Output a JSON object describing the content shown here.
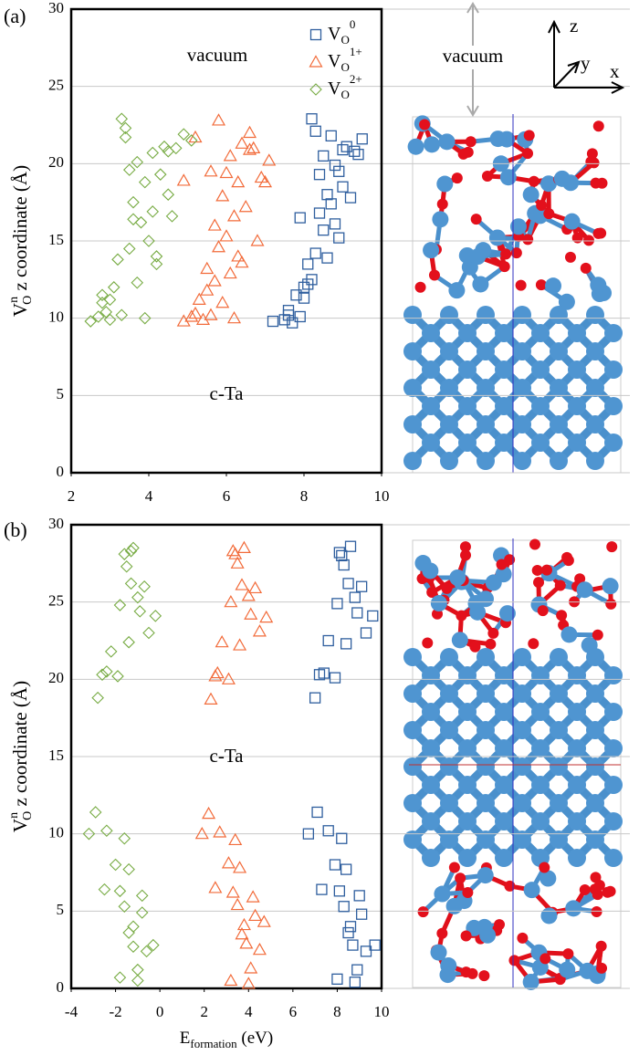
{
  "chart_data": [
    {
      "type": "scatter",
      "panel": "(a)",
      "xlim": [
        2,
        10
      ],
      "xticks": [
        2,
        4,
        6,
        8,
        10
      ],
      "ylim": [
        0,
        30
      ],
      "yticks": [
        0,
        5,
        10,
        15,
        20,
        25,
        30
      ],
      "grid": true,
      "ylabel": {
        "main": "V",
        "sup": "n",
        "sub": "O",
        "rest": " z coordinate (Å)"
      },
      "annotations": [
        "vacuum",
        "c-Ta"
      ],
      "series": [
        {
          "name": "V",
          "subscript": "O",
          "superscript": "0",
          "marker": "square",
          "color": "#2e5e9e",
          "x": [
            7.2,
            7.5,
            7.6,
            7.7,
            7.8,
            7.9,
            8.0,
            8.0,
            8.1,
            8.2,
            8.2,
            8.3,
            8.4,
            8.4,
            8.5,
            8.5,
            8.6,
            8.6,
            8.7,
            8.7,
            8.8,
            8.8,
            8.9,
            9.0,
            9.0,
            9.1,
            9.2,
            9.3,
            9.5,
            7.9,
            8.3,
            8.9,
            9.4,
            7.6,
            8.1
          ],
          "values": [
            9.8,
            9.9,
            10.2,
            9.7,
            11.5,
            10.1,
            11.3,
            12.0,
            13.5,
            22.9,
            12.5,
            14.2,
            16.8,
            19.3,
            15.7,
            20.5,
            18.0,
            13.9,
            21.8,
            17.4,
            19.9,
            16.1,
            15.2,
            20.9,
            18.5,
            21.1,
            17.8,
            20.8,
            21.6,
            16.5,
            22.1,
            19.5,
            20.6,
            10.5,
            12.2
          ]
        },
        {
          "name": "V",
          "subscript": "O",
          "superscript": "1+",
          "marker": "triangle",
          "color": "#f26b3a",
          "x": [
            4.9,
            5.1,
            5.2,
            5.3,
            5.4,
            5.5,
            5.5,
            5.6,
            5.7,
            5.8,
            5.8,
            5.9,
            6.0,
            6.0,
            6.1,
            6.1,
            6.2,
            6.3,
            6.3,
            6.4,
            6.4,
            6.5,
            6.6,
            6.7,
            6.8,
            6.9,
            7.0,
            5.2,
            5.7,
            6.6,
            7.1,
            4.9,
            5.9,
            6.2,
            5.6
          ],
          "values": [
            9.8,
            10.1,
            10.3,
            11.2,
            9.9,
            11.8,
            13.2,
            10.2,
            12.4,
            22.8,
            14.6,
            17.9,
            15.3,
            19.4,
            12.9,
            20.5,
            16.6,
            14.0,
            18.8,
            21.3,
            13.6,
            17.2,
            20.9,
            21.0,
            15.0,
            19.1,
            18.8,
            21.7,
            16.0,
            22.0,
            20.2,
            18.9,
            11.0,
            10.0,
            19.5
          ]
        },
        {
          "name": "V",
          "subscript": "O",
          "superscript": "2+",
          "marker": "diamond",
          "color": "#77ab43",
          "x": [
            2.5,
            2.7,
            2.8,
            2.9,
            3.0,
            3.1,
            3.2,
            3.3,
            3.3,
            3.4,
            3.5,
            3.5,
            3.6,
            3.7,
            3.7,
            3.8,
            3.9,
            4.0,
            4.1,
            4.1,
            4.2,
            4.3,
            4.4,
            4.5,
            4.6,
            4.7,
            4.9,
            3.4,
            3.9,
            4.5,
            5.1,
            3.0,
            3.6,
            4.2,
            2.8
          ],
          "values": [
            9.8,
            10.1,
            11.5,
            10.4,
            11.2,
            12.0,
            13.8,
            10.2,
            22.9,
            21.7,
            14.5,
            19.6,
            17.5,
            12.3,
            20.1,
            16.2,
            18.8,
            15.0,
            20.7,
            16.9,
            14.0,
            19.3,
            21.1,
            20.8,
            16.6,
            21.0,
            21.9,
            22.3,
            10.0,
            18.0,
            21.5,
            9.9,
            16.4,
            13.5,
            11.0
          ]
        }
      ]
    },
    {
      "type": "scatter",
      "panel": "(b)",
      "xlim": [
        -4,
        10
      ],
      "xticks": [
        -4,
        -2,
        0,
        2,
        4,
        6,
        8,
        10
      ],
      "ylim": [
        0,
        30
      ],
      "yticks": [
        0,
        5,
        10,
        15,
        20,
        25,
        30
      ],
      "grid": true,
      "ylabel": {
        "main": "V",
        "sup": "n",
        "sub": "O",
        "rest": " z coordinate (Å)"
      },
      "xlabel": {
        "main": "E",
        "sub": "formation",
        "rest": "  (eV)"
      },
      "annotations": [
        "c-Ta"
      ],
      "series": [
        {
          "marker": "square",
          "color": "#2e5e9e",
          "x": [
            7.0,
            7.2,
            7.4,
            7.6,
            7.9,
            8.0,
            8.2,
            8.3,
            8.4,
            8.5,
            8.6,
            8.8,
            8.9,
            9.1,
            9.3,
            9.6,
            7.1,
            7.6,
            7.9,
            8.1,
            8.3,
            8.5,
            8.7,
            8.9,
            9.1,
            9.3,
            9.7,
            6.7,
            7.3,
            8.0,
            8.2,
            8.4,
            8.6,
            8.8,
            9.0,
            8.1
          ],
          "values": [
            18.8,
            20.3,
            20.4,
            22.5,
            20.1,
            24.9,
            28.0,
            27.4,
            22.3,
            26.2,
            28.6,
            25.3,
            24.3,
            26.0,
            23.0,
            24.1,
            11.4,
            10.2,
            8.0,
            6.3,
            5.3,
            3.6,
            2.8,
            1.2,
            4.8,
            2.4,
            2.8,
            10.0,
            6.4,
            0.6,
            9.7,
            7.7,
            4.0,
            0.4,
            6.0,
            28.2
          ]
        },
        {
          "marker": "triangle",
          "color": "#f26b3a",
          "x": [
            2.3,
            2.5,
            2.6,
            2.8,
            3.1,
            3.2,
            3.4,
            3.5,
            3.6,
            3.7,
            3.8,
            4.0,
            4.1,
            4.3,
            4.5,
            4.8,
            2.2,
            2.7,
            3.1,
            3.3,
            3.5,
            3.7,
            3.9,
            4.1,
            4.3,
            4.5,
            4.7,
            1.9,
            2.5,
            3.2,
            3.4,
            3.6,
            3.8,
            4.0,
            4.2,
            3.3
          ],
          "values": [
            18.7,
            20.2,
            20.4,
            22.4,
            20.0,
            25.0,
            28.1,
            27.5,
            22.2,
            26.1,
            28.5,
            25.4,
            24.2,
            25.9,
            23.1,
            24.0,
            11.3,
            10.1,
            8.1,
            6.2,
            5.4,
            3.5,
            2.9,
            1.3,
            4.7,
            2.5,
            4.3,
            10.0,
            6.5,
            0.5,
            9.6,
            7.8,
            4.1,
            0.3,
            5.9,
            28.3
          ]
        },
        {
          "marker": "diamond",
          "color": "#77ab43",
          "x": [
            -2.8,
            -2.6,
            -2.4,
            -2.2,
            -1.9,
            -1.8,
            -1.6,
            -1.5,
            -1.4,
            -1.3,
            -1.2,
            -1.0,
            -0.9,
            -0.7,
            -0.5,
            -0.2,
            -2.9,
            -2.4,
            -2.0,
            -1.8,
            -1.6,
            -1.4,
            -1.2,
            -1.0,
            -0.8,
            -0.6,
            -0.3,
            -3.2,
            -2.5,
            -1.8,
            -1.6,
            -1.4,
            -1.2,
            -1.0,
            -0.8,
            -1.3
          ],
          "values": [
            18.8,
            20.3,
            20.5,
            21.8,
            20.2,
            24.8,
            28.1,
            27.3,
            22.4,
            26.2,
            28.5,
            25.3,
            24.4,
            26.0,
            23.0,
            24.1,
            11.4,
            10.2,
            8.0,
            6.3,
            5.3,
            3.6,
            2.7,
            1.2,
            4.9,
            2.4,
            2.8,
            10.0,
            6.4,
            0.7,
            9.7,
            7.7,
            4.0,
            0.5,
            6.0,
            28.3
          ]
        }
      ]
    }
  ],
  "structure": {
    "label": "vacuum",
    "axes": [
      "z",
      "y",
      "x"
    ]
  }
}
